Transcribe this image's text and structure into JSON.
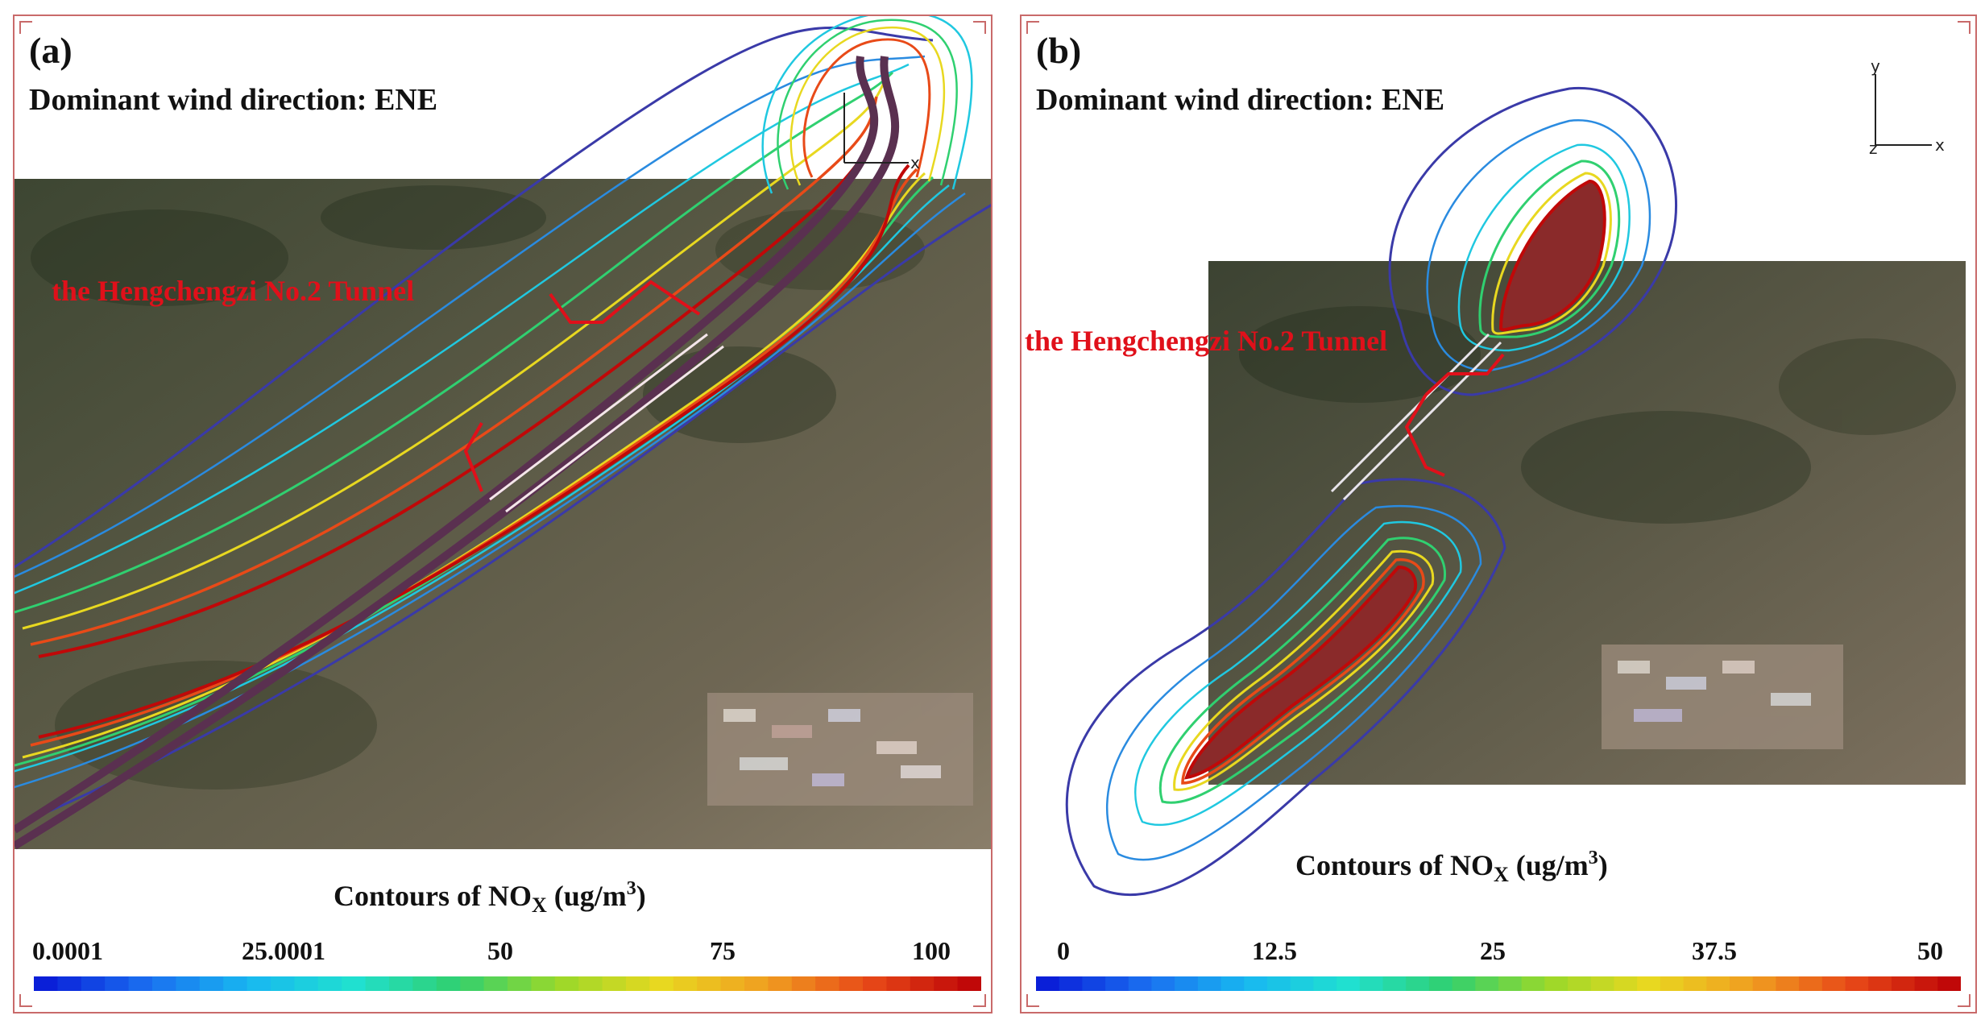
{
  "panels": [
    {
      "label": "(a)",
      "wind": "Dominant wind direction: ENE",
      "tunnel": "the Hengchengzi No.2 Tunnel",
      "contour_title": {
        "main": "Contours of NO",
        "sub": "X",
        "unit_pre": " (ug/m",
        "unit_sup": "3",
        "unit_post": ")"
      },
      "colorbar_ticks": [
        "0.0001",
        "25.0001",
        "50",
        "75",
        "100"
      ],
      "tick_values": [
        0.0001,
        25.0001,
        50,
        75,
        100
      ],
      "range": [
        0,
        100
      ]
    },
    {
      "label": "(b)",
      "wind": "Dominant wind direction: ENE",
      "tunnel": "the Hengchengzi No.2 Tunnel",
      "contour_title": {
        "main": "Contours of NO",
        "sub": "X",
        "unit_pre": " (ug/m",
        "unit_sup": "3",
        "unit_post": ")"
      },
      "colorbar_ticks": [
        "0",
        "12.5",
        "25",
        "37.5",
        "50"
      ],
      "tick_values": [
        0,
        12.5,
        25,
        37.5,
        50
      ],
      "range": [
        0,
        50
      ]
    }
  ],
  "axes": {
    "x": "x",
    "y": "y",
    "z": "z"
  },
  "colors": {
    "tunnel_marker": "#e0101a",
    "frame": "#c96a6a",
    "colormap": [
      "#0a1fd8",
      "#1a6ff0",
      "#18b8f0",
      "#20e0d0",
      "#30d070",
      "#9ad82a",
      "#e8d820",
      "#f0a020",
      "#e84a18",
      "#c00808"
    ]
  }
}
